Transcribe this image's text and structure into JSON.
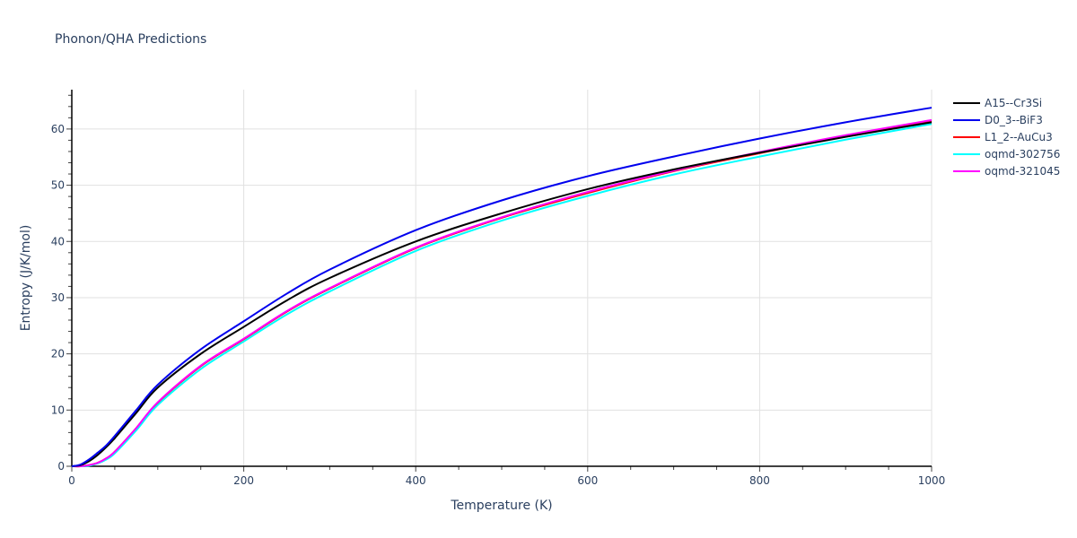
{
  "title": "Phonon/QHA Predictions",
  "chart_data": {
    "type": "line",
    "title": "Phonon/QHA Predictions",
    "xlabel": "Temperature (K)",
    "ylabel": "Entropy (J/K/mol)",
    "xlim": [
      0,
      1000
    ],
    "ylim": [
      0,
      67
    ],
    "xticks": [
      0,
      200,
      400,
      600,
      800,
      1000
    ],
    "yticks": [
      0,
      10,
      20,
      30,
      40,
      50,
      60
    ],
    "grid": true,
    "legend_position": "right",
    "x": [
      0,
      10,
      20,
      30,
      40,
      50,
      75,
      100,
      150,
      200,
      250,
      300,
      400,
      500,
      600,
      700,
      800,
      900,
      1000
    ],
    "series": [
      {
        "name": "A15--Cr3Si",
        "color": "#000000",
        "values": [
          0,
          0.2,
          0.9,
          2.0,
          3.4,
          5.0,
          9.5,
          14.0,
          20.0,
          24.8,
          29.5,
          33.5,
          40.0,
          45.0,
          49.3,
          52.8,
          55.8,
          58.6,
          61.2
        ]
      },
      {
        "name": "D0_3--BiF3",
        "color": "#0000ee",
        "values": [
          0,
          0.3,
          1.2,
          2.4,
          3.7,
          5.4,
          10.0,
          14.5,
          20.8,
          25.8,
          30.7,
          35.0,
          42.0,
          47.3,
          51.6,
          55.1,
          58.3,
          61.2,
          63.8
        ]
      },
      {
        "name": "L1_2--AuCu3",
        "color": "#ff0000",
        "values": [
          0,
          0.0,
          0.2,
          0.6,
          1.4,
          2.6,
          6.8,
          11.3,
          17.8,
          22.6,
          27.5,
          31.6,
          38.8,
          44.2,
          48.6,
          52.5,
          55.7,
          58.7,
          61.4
        ]
      },
      {
        "name": "oqmd-302756",
        "color": "#00ffff",
        "values": [
          0,
          0.0,
          0.1,
          0.5,
          1.2,
          2.3,
          6.4,
          10.9,
          17.3,
          22.2,
          27.0,
          31.1,
          38.3,
          43.7,
          48.1,
          51.9,
          55.1,
          58.1,
          60.9
        ]
      },
      {
        "name": "oqmd-321045",
        "color": "#ff00ff",
        "values": [
          0,
          0.0,
          0.2,
          0.6,
          1.4,
          2.6,
          6.8,
          11.4,
          17.9,
          22.7,
          27.6,
          31.7,
          38.9,
          44.3,
          48.8,
          52.6,
          55.9,
          58.9,
          61.6
        ]
      }
    ]
  }
}
